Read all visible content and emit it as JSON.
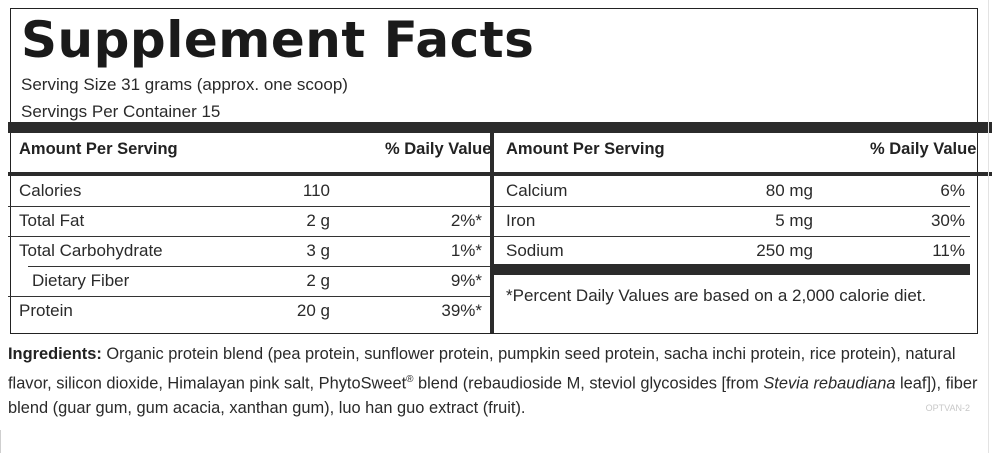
{
  "title": "Supplement Facts",
  "serving_size": "Serving Size 31 grams (approx. one scoop)",
  "servings_per_container": "Servings Per Container 15",
  "left_table": {
    "header_amount": "Amount Per Serving",
    "header_dv": "% Daily Value",
    "rows": [
      {
        "name": "Calories",
        "amount": "110",
        "dv": ""
      },
      {
        "name": "Total Fat",
        "amount": "2 g",
        "dv": "2%*"
      },
      {
        "name": "Total Carbohydrate",
        "amount": "3 g",
        "dv": "1%*"
      },
      {
        "name": "Dietary Fiber",
        "amount": "2 g",
        "dv": "9%*"
      },
      {
        "name": "Protein",
        "amount": "20 g",
        "dv": "39%*"
      }
    ]
  },
  "right_table": {
    "header_amount": "Amount Per Serving",
    "header_dv": "% Daily Value",
    "rows": [
      {
        "name": "Calcium",
        "amount": "80 mg",
        "dv": "6%"
      },
      {
        "name": "Iron",
        "amount": "5 mg",
        "dv": "30%"
      },
      {
        "name": "Sodium",
        "amount": "250 mg",
        "dv": "11%"
      }
    ],
    "footnote": "*Percent Daily Values are based on a 2,000 calorie diet."
  },
  "ingredients": {
    "label": "Ingredients:",
    "text_1": " Organic protein blend (pea protein, sunflower protein, pumpkin seed protein, sacha inchi protein, rice protein), natural flavor, silicon dioxide, Himalayan pink salt, PhytoSweet",
    "reg_mark": "®",
    "text_2": " blend (rebaudioside M, steviol glycosides [from ",
    "italic": "Stevia rebaudiana",
    "text_3": " leaf]), fiber blend (guar gum, gum acacia, xanthan gum), luo han guo extract (fruit)."
  },
  "code": "OPTVAN-2"
}
